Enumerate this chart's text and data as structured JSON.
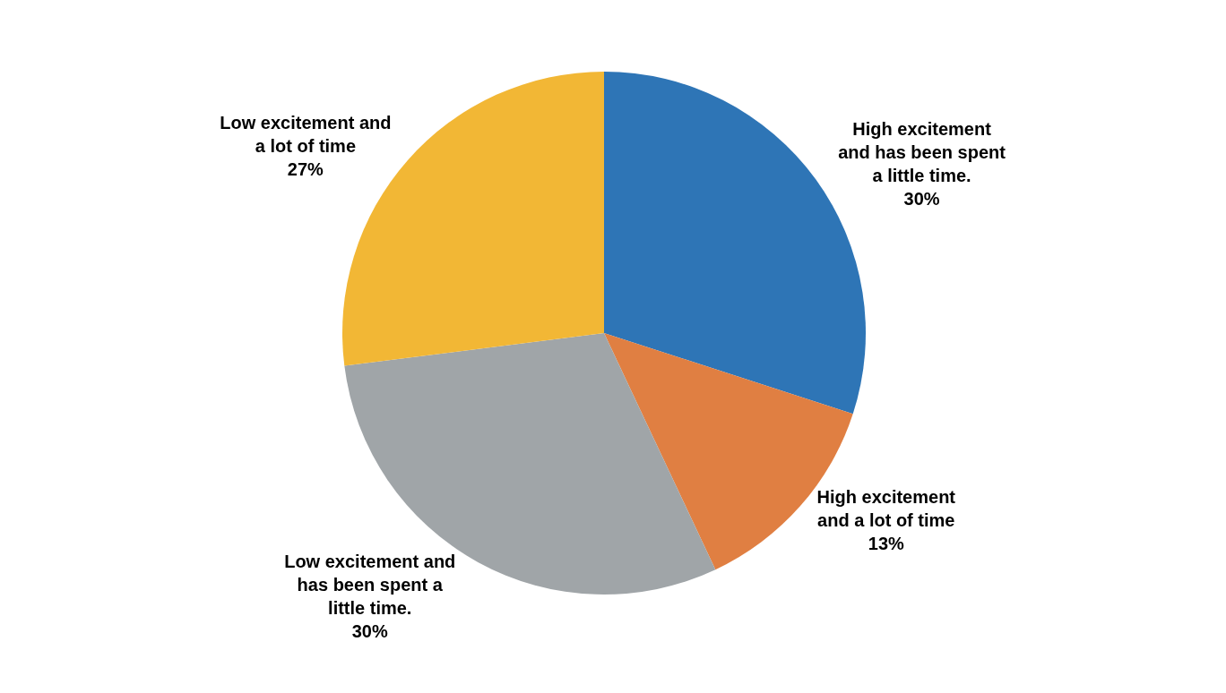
{
  "chart_data": {
    "type": "pie",
    "categories": [
      "High excitement and has been spent a little time.",
      "High excitement and a lot of time",
      "Low excitement and has been spent a little time.",
      "Low excitement and a lot of time"
    ],
    "values": [
      30,
      13,
      30,
      27
    ],
    "value_labels": [
      "30%",
      "13%",
      "30%",
      "27%"
    ],
    "colors": [
      "#2e75b6",
      "#e07f42",
      "#a0a5a8",
      "#f2b735"
    ],
    "legend": false
  }
}
